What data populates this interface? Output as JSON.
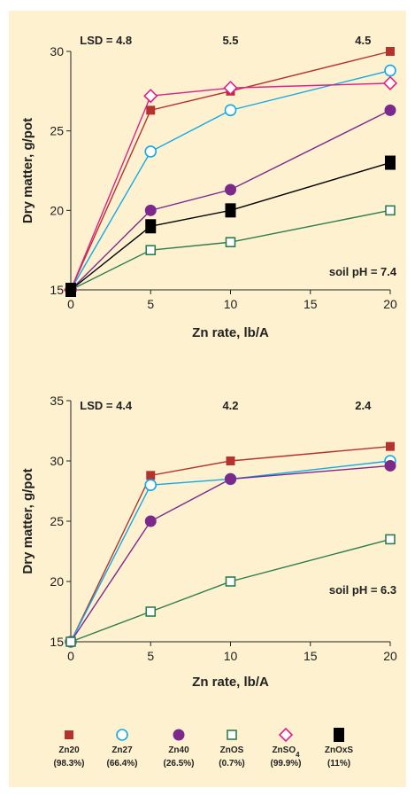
{
  "chart_data": [
    {
      "type": "line",
      "xlabel": "Zn rate, lb/A",
      "ylabel": "Dry matter, g/pot",
      "xlim": [
        0,
        20
      ],
      "ylim": [
        15,
        30
      ],
      "xticks": [
        0,
        5,
        10,
        15,
        20
      ],
      "yticks": [
        15,
        20,
        25,
        30
      ],
      "lsd": [
        {
          "label": "LSD = 4.8",
          "x": 2.2
        },
        {
          "label": "5.5",
          "x": 10
        },
        {
          "label": "4.5",
          "x": 18.3
        }
      ],
      "annotation": "soil pH = 7.4",
      "series": [
        {
          "name": "Zn20",
          "color": "#b5332e",
          "marker": "square",
          "x": [
            0,
            5,
            10,
            20
          ],
          "values": [
            15,
            26.3,
            27.5,
            30
          ]
        },
        {
          "name": "Zn27",
          "color": "#13a9e8",
          "marker": "circle-open",
          "x": [
            0,
            5,
            10,
            20
          ],
          "values": [
            15,
            23.7,
            26.3,
            28.8
          ]
        },
        {
          "name": "Zn40",
          "color": "#7b2a8c",
          "marker": "circle",
          "x": [
            0,
            5,
            10,
            20
          ],
          "values": [
            15,
            20,
            21.3,
            26.3
          ]
        },
        {
          "name": "ZnOS",
          "color": "#2e7d4f",
          "marker": "square-open",
          "x": [
            0,
            5,
            10,
            20
          ],
          "values": [
            15,
            17.5,
            18,
            20
          ]
        },
        {
          "name": "ZnSO4",
          "color": "#e0208a",
          "marker": "diamond-open",
          "x": [
            0,
            5,
            10,
            20
          ],
          "values": [
            15,
            27.2,
            27.7,
            28
          ]
        },
        {
          "name": "ZnOxS",
          "color": "#000000",
          "marker": "rect",
          "x": [
            0,
            5,
            10,
            20
          ],
          "values": [
            15,
            19,
            20,
            23
          ]
        }
      ]
    },
    {
      "type": "line",
      "xlabel": "Zn rate, lb/A",
      "ylabel": "Dry matter, g/pot",
      "xlim": [
        0,
        20
      ],
      "ylim": [
        15,
        35
      ],
      "xticks": [
        0,
        5,
        10,
        15,
        20
      ],
      "yticks": [
        15,
        20,
        25,
        30,
        35
      ],
      "lsd": [
        {
          "label": "LSD = 4.4",
          "x": 2.2
        },
        {
          "label": "4.2",
          "x": 10
        },
        {
          "label": "2.4",
          "x": 18.3
        }
      ],
      "annotation": "soil pH = 6.3",
      "series": [
        {
          "name": "Zn20",
          "color": "#b5332e",
          "marker": "square",
          "x": [
            0,
            5,
            10,
            20
          ],
          "values": [
            15,
            28.8,
            30,
            31.2
          ]
        },
        {
          "name": "Zn27",
          "color": "#13a9e8",
          "marker": "circle-open",
          "x": [
            0,
            5,
            10,
            20
          ],
          "values": [
            15,
            28,
            28.5,
            30
          ]
        },
        {
          "name": "Zn40",
          "color": "#7b2a8c",
          "marker": "circle",
          "x": [
            0,
            5,
            10,
            20
          ],
          "values": [
            15,
            25,
            28.5,
            29.6
          ]
        },
        {
          "name": "ZnOS",
          "color": "#2e7d4f",
          "marker": "square-open",
          "x": [
            0,
            5,
            10,
            20
          ],
          "values": [
            15,
            17.5,
            20,
            23.5
          ]
        }
      ]
    }
  ],
  "legend": [
    {
      "name": "Zn20",
      "pct": "(98.3%)",
      "color": "#b5332e",
      "marker": "square"
    },
    {
      "name": "Zn27",
      "pct": "(66.4%)",
      "color": "#13a9e8",
      "marker": "circle-open"
    },
    {
      "name": "Zn40",
      "pct": "(26.5%)",
      "color": "#7b2a8c",
      "marker": "circle"
    },
    {
      "name": "ZnOS",
      "pct": "(0.7%)",
      "color": "#2e7d4f",
      "marker": "square-open"
    },
    {
      "name": "ZnSO",
      "sub": "4",
      "pct": "(99.9%)",
      "color": "#e0208a",
      "marker": "diamond-open"
    },
    {
      "name": "ZnOxS",
      "pct": "(11%)",
      "color": "#000000",
      "marker": "rect"
    }
  ]
}
